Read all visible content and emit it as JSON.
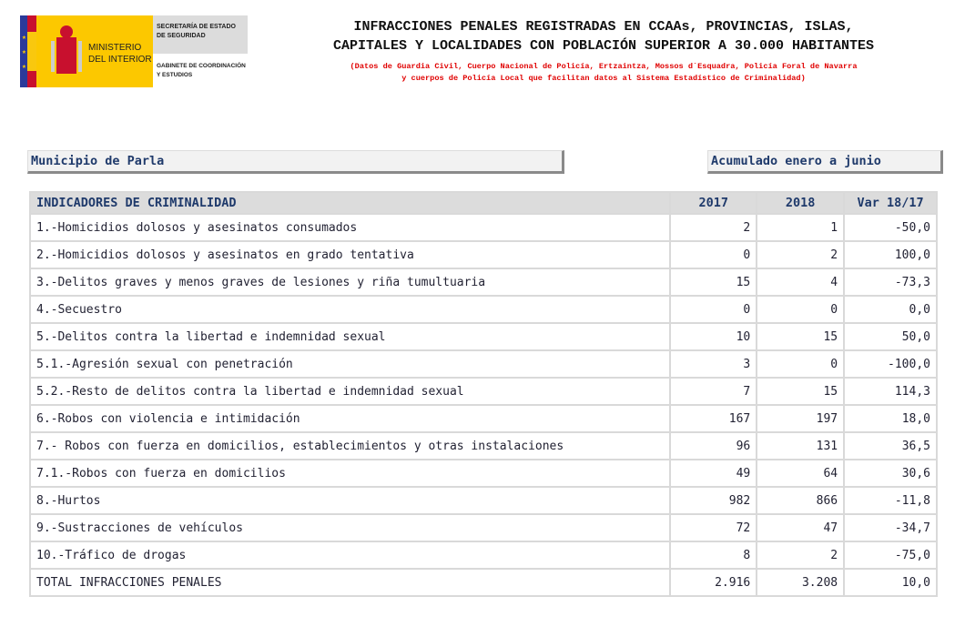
{
  "logo": {
    "ministry": "MINISTERIO DEL INTERIOR",
    "secretaria": "SECRETARÍA DE ESTADO DE SEGURIDAD",
    "gabinete": "GABINETE DE COORDINACIÓN Y ESTUDIOS"
  },
  "header": {
    "title_line1": "INFRACCIONES PENALES REGISTRADAS EN CCAAs, PROVINCIAS, ISLAS,",
    "title_line2": "CAPITALES Y LOCALIDADES CON POBLACIÓN SUPERIOR A 30.000 HABITANTES",
    "subtitle_line1": "(Datos de Guardia Civil, Cuerpo Nacional de Policía, Ertzaintza, Mossos d´Esquadra, Policía Foral de Navarra",
    "subtitle_line2": "y cuerpos de Policía Local que facilitan datos al Sistema Estadístico de Criminalidad)"
  },
  "municipio": "Municipio de Parla",
  "periodo": "Acumulado enero a junio",
  "table": {
    "columns": [
      "INDICADORES DE CRIMINALIDAD",
      "2017",
      "2018",
      "Var 18/17"
    ],
    "rows": [
      [
        "1.-Homicidios dolosos y asesinatos consumados",
        "2",
        "1",
        "-50,0"
      ],
      [
        "2.-Homicidios dolosos y asesinatos en grado tentativa",
        "0",
        "2",
        "100,0"
      ],
      [
        "3.-Delitos graves y menos graves de lesiones y riña tumultuaria",
        "15",
        "4",
        "-73,3"
      ],
      [
        "4.-Secuestro",
        "0",
        "0",
        "0,0"
      ],
      [
        "5.-Delitos contra la libertad e indemnidad sexual",
        "10",
        "15",
        "50,0"
      ],
      [
        "5.1.-Agresión sexual con penetración",
        "3",
        "0",
        "-100,0"
      ],
      [
        "5.2.-Resto de delitos contra la libertad e indemnidad sexual",
        "7",
        "15",
        "114,3"
      ],
      [
        "6.-Robos con violencia e intimidación",
        "167",
        "197",
        "18,0"
      ],
      [
        "7.- Robos con fuerza en domicilios, establecimientos y otras instalaciones",
        "96",
        "131",
        "36,5"
      ],
      [
        "7.1.-Robos con fuerza en domicilios",
        "49",
        "64",
        "30,6"
      ],
      [
        "8.-Hurtos",
        "982",
        "866",
        "-11,8"
      ],
      [
        "9.-Sustracciones de vehículos",
        "72",
        "47",
        "-34,7"
      ],
      [
        "10.-Tráfico de drogas",
        "8",
        "2",
        "-75,0"
      ],
      [
        "TOTAL INFRACCIONES PENALES",
        "2.916",
        "3.208",
        "10,0"
      ]
    ]
  }
}
